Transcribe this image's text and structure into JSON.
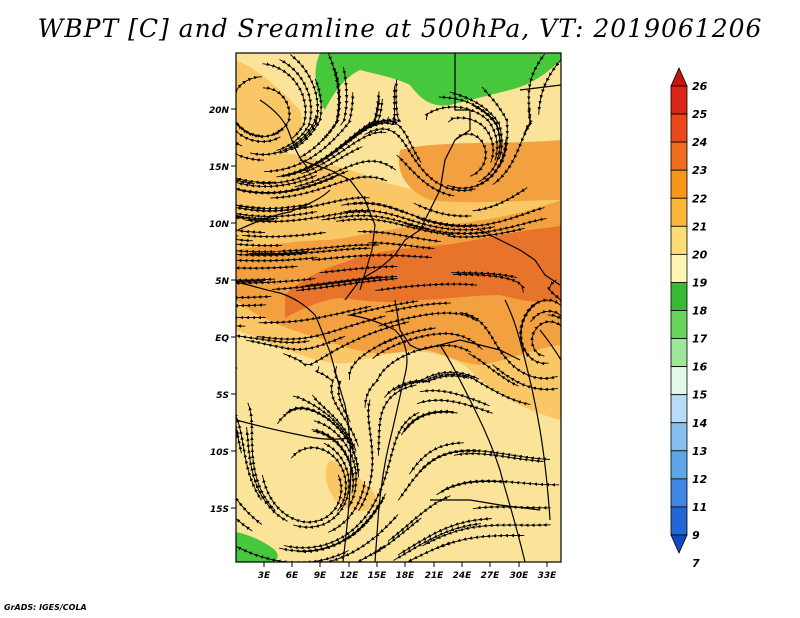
{
  "title": "WBPT [C] and Sreamline at 500hPa, VT: 2019061206",
  "footer": "GrADS: IGES/COLA",
  "map": {
    "lat_labels": [
      "20N",
      "15N",
      "10N",
      "5N",
      "EQ",
      "5S",
      "10S",
      "15S"
    ],
    "lon_labels": [
      "3E",
      "6E",
      "9E",
      "12E",
      "15E",
      "18E",
      "21E",
      "24E",
      "27E",
      "30E",
      "33E"
    ],
    "fill_colors": {
      "background": "#fbe49a",
      "level_21": "#fac766",
      "level_22": "#f3a140",
      "level_23": "#e8732a",
      "level_17": "#47c83c"
    }
  },
  "colorbar": {
    "labels": [
      "26",
      "25",
      "24",
      "23",
      "22",
      "21",
      "20",
      "19",
      "18",
      "17",
      "16",
      "15",
      "14",
      "13",
      "12",
      "11",
      "9",
      "7"
    ],
    "colors": [
      "#c51612",
      "#d92617",
      "#ea4818",
      "#ef6d1e",
      "#f6961b",
      "#fab637",
      "#fcdd74",
      "#fff5b4",
      "#3ab935",
      "#67d45d",
      "#9de79a",
      "#e2f9e5",
      "#b8dcf7",
      "#87c0f0",
      "#5ea5eb",
      "#3f87e2",
      "#2366d6",
      "#1148c4"
    ]
  }
}
